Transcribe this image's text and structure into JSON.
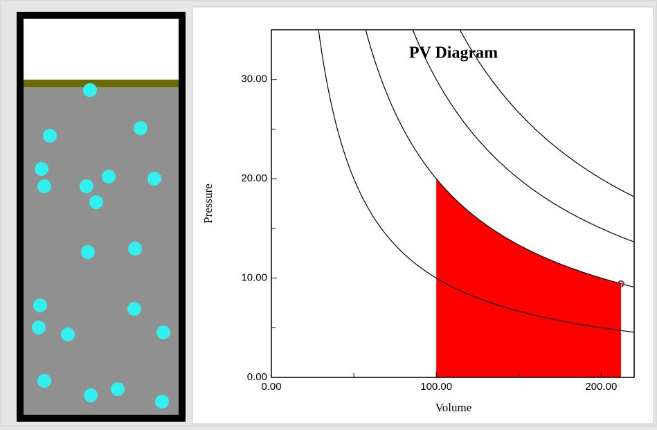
{
  "chart_data": {
    "type": "pv",
    "title": "PV Diagram",
    "x_label": "Volume",
    "y_label": "Pressure",
    "xlim": [
      0,
      220
    ],
    "ylim": [
      0,
      35
    ],
    "xticks": [
      {
        "value": 0,
        "label": "0.00"
      },
      {
        "value": 100,
        "label": "100.00"
      },
      {
        "value": 200,
        "label": "200.00"
      }
    ],
    "yticks": [
      {
        "value": 0,
        "label": "0.00"
      },
      {
        "value": 10,
        "label": "10.00"
      },
      {
        "value": 20,
        "label": "20.00"
      },
      {
        "value": 30,
        "label": "30.00"
      }
    ],
    "xminor": [
      50,
      150
    ],
    "yminor": [
      5,
      15,
      25
    ],
    "isotherms": [
      {
        "pv": 1000
      },
      {
        "pv": 2000
      },
      {
        "pv": 3000
      },
      {
        "pv": 4000
      }
    ],
    "work_area": {
      "v_start": 100,
      "v_end": 212,
      "pv": 2000,
      "color": "#ff0000"
    },
    "state": {
      "volume": 212,
      "pressure": 9.43,
      "color": "#b22222"
    }
  }
}
